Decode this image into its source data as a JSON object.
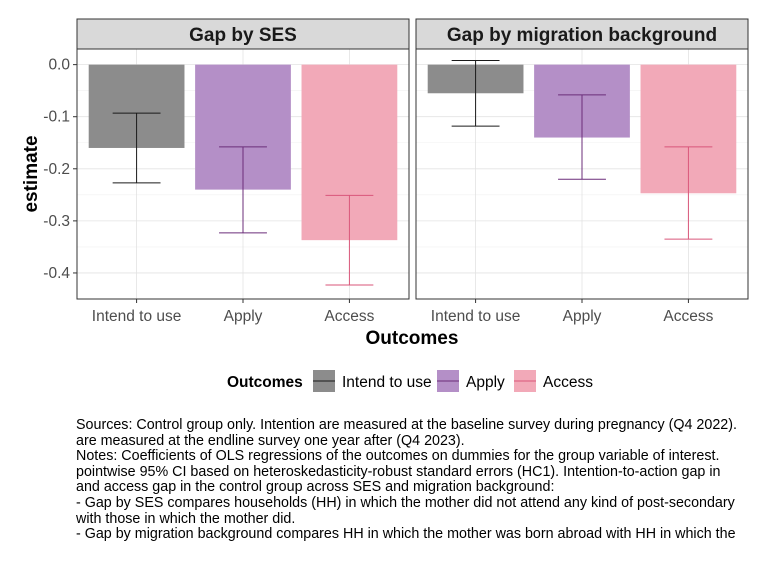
{
  "chart_data": {
    "type": "bar",
    "ylabel": "estimate",
    "xlabel": "Outcomes",
    "ylim": [
      -0.45,
      0.03
    ],
    "yticks": [
      0.0,
      -0.1,
      -0.2,
      -0.3,
      -0.4
    ],
    "ytick_labels": [
      "0.0",
      "-0.1",
      "-0.2",
      "-0.3",
      "-0.4"
    ],
    "categories": [
      "Intend to use",
      "Apply",
      "Access"
    ],
    "colors": {
      "Intend to use": "#8c8c8c",
      "Apply": "#b48fc7",
      "Access": "#f2a9b8"
    },
    "errorbar_colors": {
      "Intend to use": "#1a1a1a",
      "Apply": "#6b2d7a",
      "Access": "#d9567a"
    },
    "grid": true,
    "legend": {
      "title": "Outcomes",
      "position": "bottom",
      "entries": [
        "Intend to use",
        "Apply",
        "Access"
      ]
    },
    "panels": [
      {
        "title": "Gap by SES",
        "values": [
          -0.16,
          -0.24,
          -0.337
        ],
        "ci_low": [
          -0.227,
          -0.323,
          -0.423
        ],
        "ci_high": [
          -0.093,
          -0.158,
          -0.251
        ]
      },
      {
        "title": "Gap by migration background",
        "values": [
          -0.055,
          -0.14,
          -0.247
        ],
        "ci_low": [
          -0.118,
          -0.22,
          -0.335
        ],
        "ci_high": [
          0.008,
          -0.058,
          -0.158
        ]
      }
    ]
  },
  "notes": [
    "Sources: Control group only. Intention are measured at the baseline survey during pregnancy (Q4 2022).",
    "are measured at the endline survey one year after (Q4 2023).",
    "Notes: Coefficients of OLS regressions of the outcomes on dummies for the group variable of interest.",
    "pointwise 95% CI based on heteroskedasticity-robust standard errors (HC1). Intention-to-action gap in",
    "and access gap in the control group across SES and migration background:",
    "- Gap by SES compares households (HH) in which the mother did not attend any kind of post-secondary",
    "with those in which the mother did.",
    "- Gap by migration background compares HH in which the mother was born abroad with HH in which the"
  ]
}
